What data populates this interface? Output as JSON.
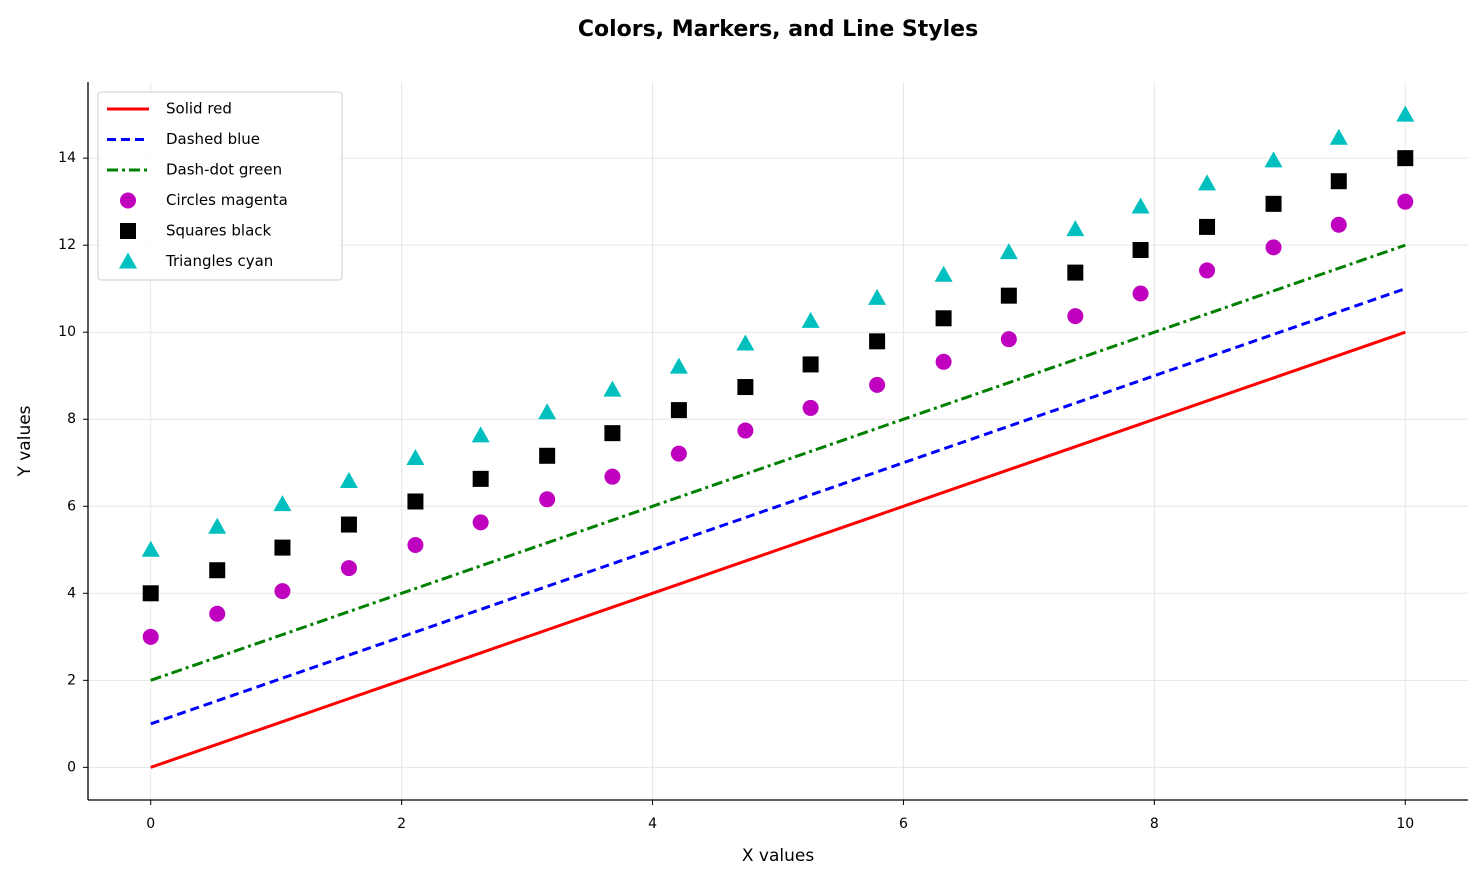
{
  "chart_data": {
    "type": "line",
    "title": "Colors, Markers, and Line Styles",
    "x_label": "X values",
    "y_label": "Y values",
    "x": [
      0,
      0.53,
      1.05,
      1.58,
      2.11,
      2.63,
      3.16,
      3.68,
      4.21,
      4.74,
      5.26,
      5.79,
      6.32,
      6.84,
      7.37,
      7.89,
      8.42,
      8.95,
      9.47,
      10
    ],
    "series": [
      {
        "name": "Solid red",
        "color": "#ff0000",
        "linestyle": "solid",
        "values": [
          0,
          0.53,
          1.05,
          1.58,
          2.11,
          2.63,
          3.16,
          3.68,
          4.21,
          4.74,
          5.26,
          5.79,
          6.32,
          6.84,
          7.37,
          7.89,
          8.42,
          8.95,
          9.47,
          10
        ]
      },
      {
        "name": "Dashed blue",
        "color": "#0000ff",
        "linestyle": "dashed",
        "values": [
          1,
          1.53,
          2.05,
          2.58,
          3.11,
          3.63,
          4.16,
          4.68,
          5.21,
          5.74,
          6.26,
          6.79,
          7.32,
          7.84,
          8.37,
          8.89,
          9.42,
          9.95,
          10.47,
          11
        ]
      },
      {
        "name": "Dash-dot green",
        "color": "#008000",
        "linestyle": "dashdot",
        "values": [
          2,
          2.53,
          3.05,
          3.58,
          4.11,
          4.63,
          5.16,
          5.68,
          6.21,
          6.74,
          7.26,
          7.79,
          8.32,
          8.84,
          9.37,
          9.89,
          10.42,
          10.95,
          11.47,
          12
        ]
      },
      {
        "name": "Circles magenta",
        "color": "#bf00bf",
        "marker": "circle",
        "values": [
          3,
          3.53,
          4.05,
          4.58,
          5.11,
          5.63,
          6.16,
          6.68,
          7.21,
          7.74,
          8.26,
          8.79,
          9.32,
          9.84,
          10.37,
          10.89,
          11.42,
          11.95,
          12.47,
          13
        ]
      },
      {
        "name": "Squares black",
        "color": "#000000",
        "marker": "square",
        "values": [
          4,
          4.53,
          5.05,
          5.58,
          6.11,
          6.63,
          7.16,
          7.68,
          8.21,
          8.74,
          9.26,
          9.79,
          10.32,
          10.84,
          11.37,
          11.89,
          12.42,
          12.95,
          13.47,
          14
        ]
      },
      {
        "name": "Triangles cyan",
        "color": "#00bfbf",
        "marker": "triangle",
        "values": [
          5,
          5.53,
          6.05,
          6.58,
          7.11,
          7.63,
          8.16,
          8.68,
          9.21,
          9.74,
          10.26,
          10.79,
          11.32,
          11.84,
          12.37,
          12.89,
          13.42,
          13.95,
          14.47,
          15
        ]
      }
    ],
    "xlim": [
      -0.5,
      10.5
    ],
    "xticks": [
      0,
      2,
      4,
      6,
      8,
      10
    ],
    "ylim": [
      -0.75,
      15.75
    ],
    "yticks": [
      0,
      2,
      4,
      6,
      8,
      10,
      12,
      14
    ],
    "grid": true,
    "legend": "upper left"
  }
}
